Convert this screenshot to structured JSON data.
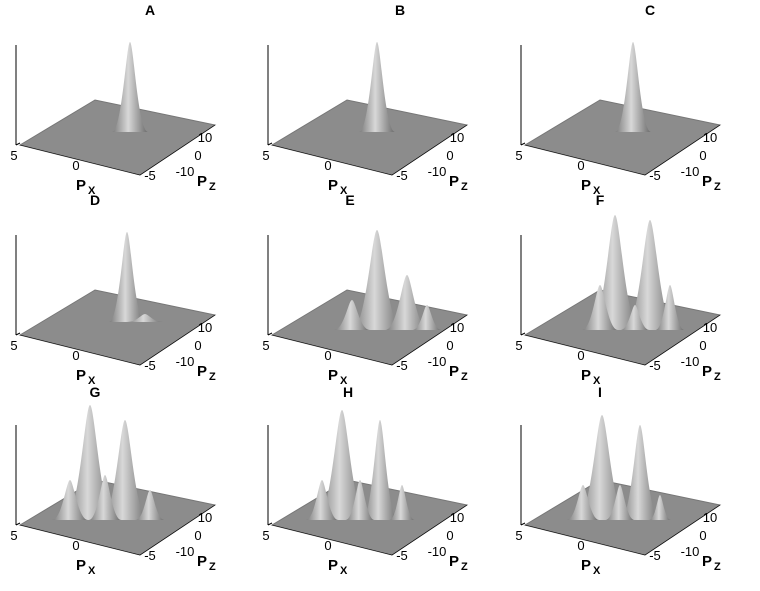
{
  "panels": [
    {
      "label": "A"
    },
    {
      "label": "B"
    },
    {
      "label": "C"
    },
    {
      "label": "D"
    },
    {
      "label": "E"
    },
    {
      "label": "F"
    },
    {
      "label": "G"
    },
    {
      "label": "H"
    },
    {
      "label": "I"
    }
  ],
  "axes": {
    "x_label": "P",
    "x_sub": "X",
    "z_label": "P",
    "z_sub": "Z",
    "x_ticks": [
      "5",
      "0",
      "-5"
    ],
    "z_ticks": [
      "10",
      "0",
      "-10"
    ]
  }
}
